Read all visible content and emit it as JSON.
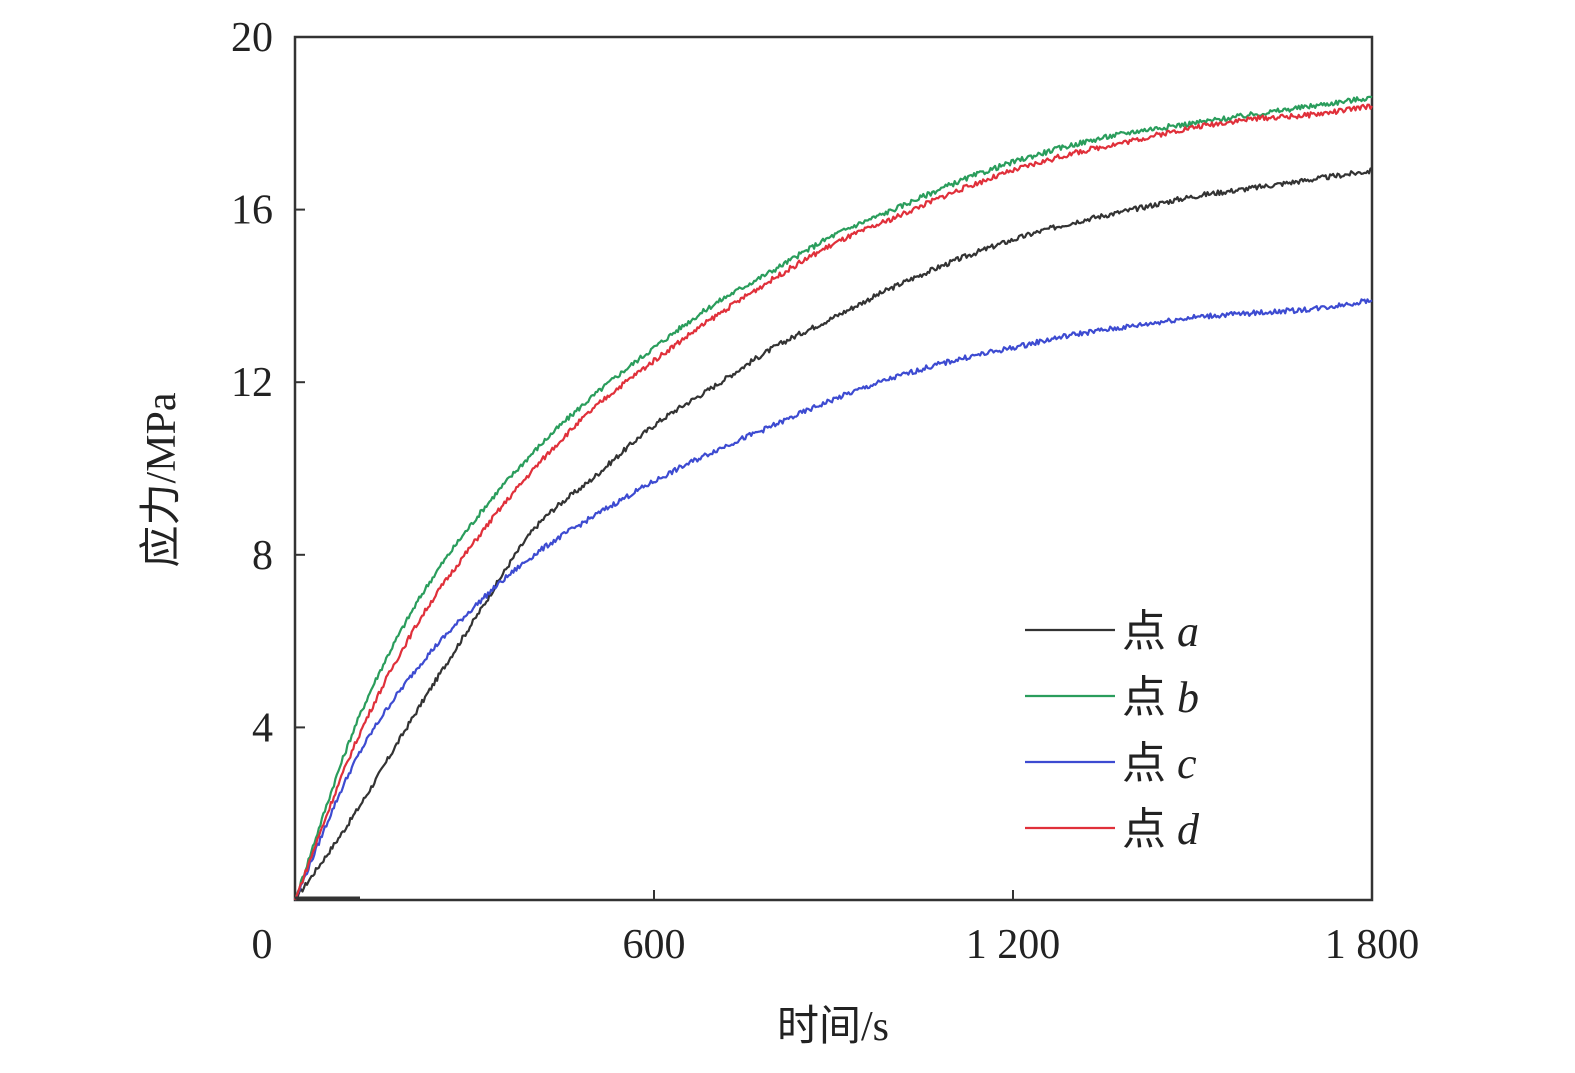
{
  "chart_data": {
    "type": "line",
    "xlabel": "时间/s",
    "ylabel": "应力/MPa",
    "xlim": [
      0,
      1800
    ],
    "ylim": [
      0,
      20
    ],
    "x_ticks": [
      0,
      600,
      1200,
      1800
    ],
    "x_tick_labels": [
      "0",
      "600",
      "1 200",
      "1 800"
    ],
    "y_ticks": [
      4,
      8,
      12,
      16,
      20
    ],
    "y_tick_labels": [
      "4",
      "8",
      "12",
      "16",
      "20"
    ],
    "grid": false,
    "legend_position": "bottom-right",
    "x": [
      0,
      100,
      200,
      300,
      400,
      500,
      600,
      700,
      800,
      900,
      1000,
      1100,
      1200,
      1300,
      1400,
      1500,
      1600,
      1700,
      1800
    ],
    "series": [
      {
        "name": "点 a",
        "color": "#333333",
        "values": [
          0,
          2.0,
          4.3,
          6.5,
          8.6,
          9.8,
          11.0,
          11.9,
          12.8,
          13.5,
          14.2,
          14.8,
          15.3,
          15.7,
          16.0,
          16.3,
          16.5,
          16.7,
          16.9
        ]
      },
      {
        "name": "点 b",
        "color": "#2a9d5c",
        "values": [
          0,
          4.0,
          6.8,
          8.8,
          10.4,
          11.7,
          12.8,
          13.8,
          14.6,
          15.4,
          16.0,
          16.6,
          17.1,
          17.5,
          17.8,
          18.0,
          18.2,
          18.4,
          18.6
        ]
      },
      {
        "name": "点 c",
        "color": "#3d4bd1",
        "values": [
          0,
          3.2,
          5.3,
          6.8,
          8.0,
          8.9,
          9.7,
          10.4,
          11.0,
          11.6,
          12.1,
          12.5,
          12.8,
          13.1,
          13.3,
          13.5,
          13.6,
          13.7,
          13.9
        ]
      },
      {
        "name": "点 d",
        "color": "#e0303a",
        "values": [
          0,
          3.6,
          6.3,
          8.3,
          10.0,
          11.4,
          12.5,
          13.5,
          14.4,
          15.2,
          15.8,
          16.4,
          16.9,
          17.3,
          17.6,
          17.9,
          18.1,
          18.2,
          18.4
        ]
      }
    ]
  }
}
